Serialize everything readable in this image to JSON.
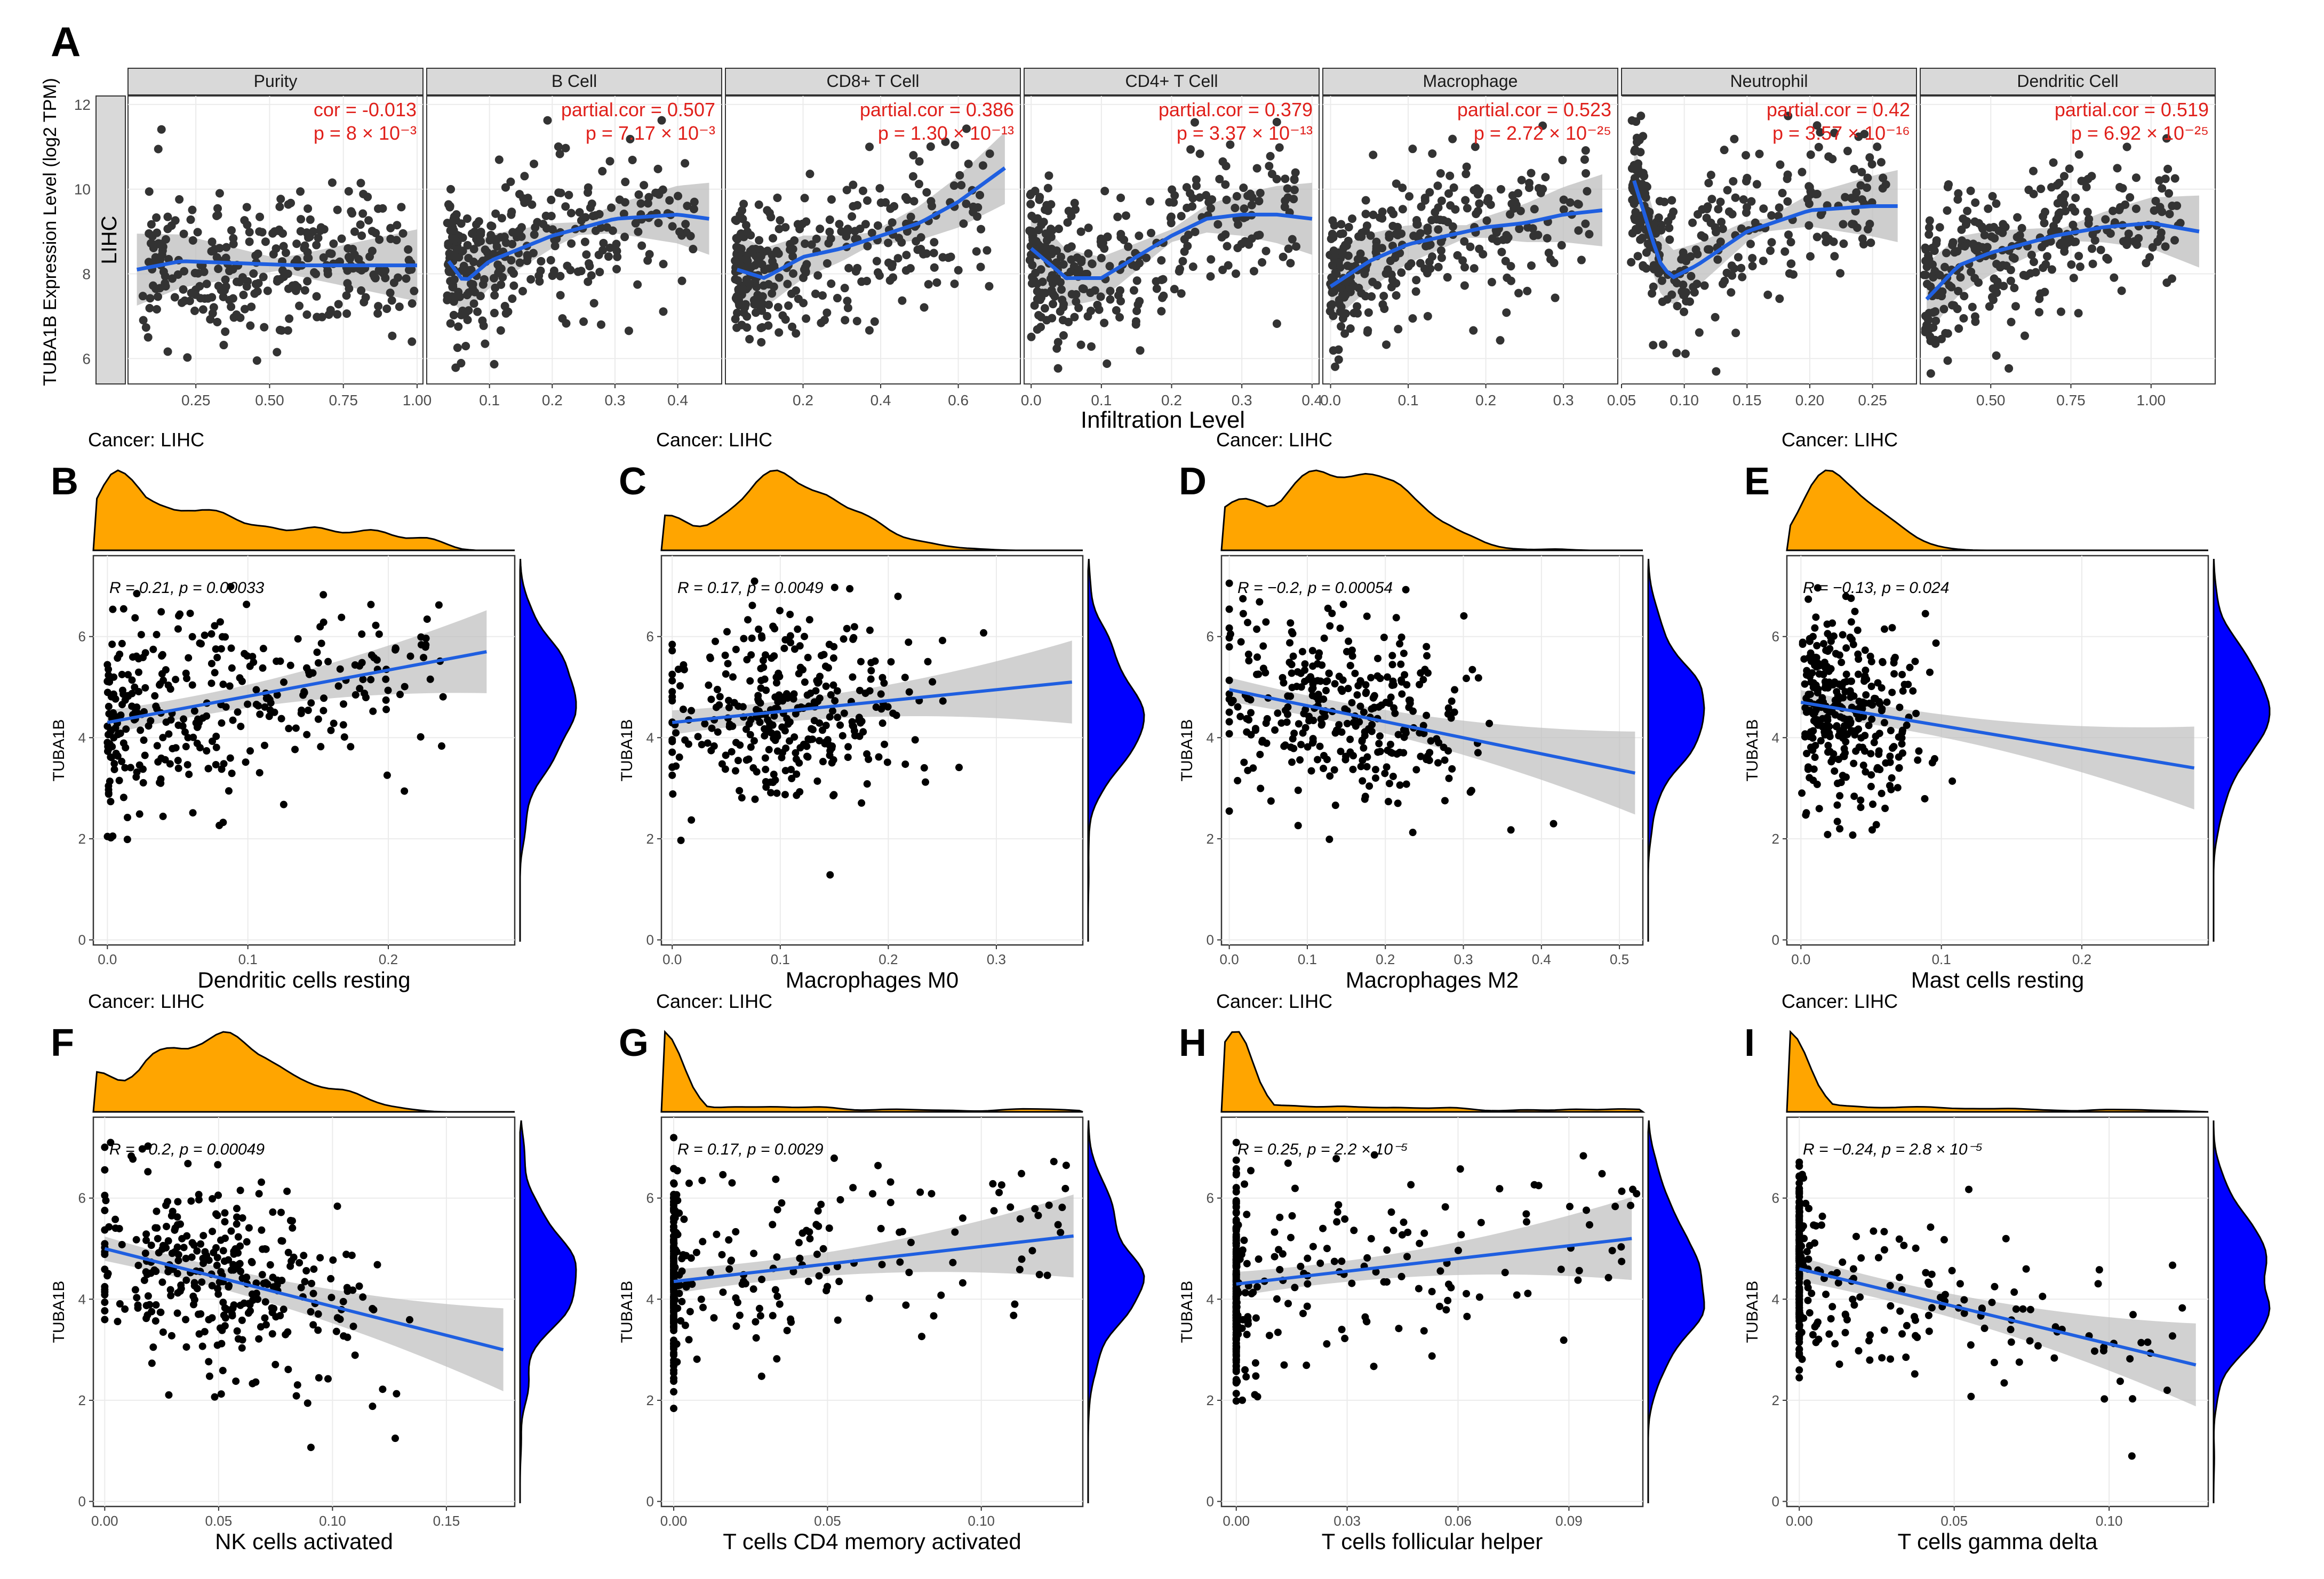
{
  "panel_a": {
    "letter": "A",
    "ylabel": "TUBA1B Expression Level (log2 TPM)",
    "xlabel": "Infiltration Level",
    "row_label": "LIHC",
    "yticks": [
      "6",
      "8",
      "10",
      "12"
    ],
    "ylim": [
      5.4,
      12.2
    ]
  },
  "panels_bottom_common": {
    "cancer_label": "Cancer: LIHC",
    "ylabel": "TUBA1B",
    "yticks": [
      "0",
      "2",
      "4",
      "6"
    ]
  },
  "colors": {
    "points": "#333333",
    "fit_line": "#1f5fe0",
    "ci_band": "#bdbdbd",
    "annot_red": "#e0201b",
    "top_density": "#ffa500",
    "right_density": "#0000ff",
    "strip_bg": "#d9d9d9"
  },
  "chart_data": [
    {
      "type": "scatter",
      "panel": "A",
      "strip": "Purity",
      "stat_label": "cor = -0.013",
      "p_label": "p = 8 × 10⁻³",
      "xticks": [
        "0.25",
        "0.50",
        "0.75",
        "1.00"
      ],
      "xlim": [
        0.02,
        1.02
      ],
      "fit": [
        [
          0.05,
          8.1
        ],
        [
          0.2,
          8.3
        ],
        [
          0.4,
          8.25
        ],
        [
          0.6,
          8.2
        ],
        [
          0.8,
          8.2
        ],
        [
          1.0,
          8.2
        ]
      ],
      "seed": 11
    },
    {
      "type": "scatter",
      "panel": "A",
      "strip": "B Cell",
      "stat_label": "partial.cor = 0.507",
      "p_label": "p = 7.17 × 10⁻³",
      "xticks": [
        "0.1",
        "0.2",
        "0.3",
        "0.4"
      ],
      "xlim": [
        0.0,
        0.47
      ],
      "fit": [
        [
          0.035,
          8.3
        ],
        [
          0.06,
          7.8
        ],
        [
          0.1,
          8.3
        ],
        [
          0.2,
          8.9
        ],
        [
          0.3,
          9.3
        ],
        [
          0.4,
          9.4
        ],
        [
          0.45,
          9.3
        ]
      ],
      "seed": 23
    },
    {
      "type": "scatter",
      "panel": "A",
      "strip": "CD8+ T Cell",
      "stat_label": "partial.cor = 0.386",
      "p_label": "p = 1.30 × 10⁻¹³",
      "xticks": [
        "0.2",
        "0.4",
        "0.6"
      ],
      "xlim": [
        0.0,
        0.76
      ],
      "fit": [
        [
          0.03,
          8.1
        ],
        [
          0.1,
          7.9
        ],
        [
          0.2,
          8.4
        ],
        [
          0.3,
          8.6
        ],
        [
          0.4,
          8.9
        ],
        [
          0.5,
          9.2
        ],
        [
          0.6,
          9.7
        ],
        [
          0.72,
          10.5
        ]
      ],
      "seed": 37
    },
    {
      "type": "scatter",
      "panel": "A",
      "strip": "CD4+ T Cell",
      "stat_label": "partial.cor = 0.379",
      "p_label": "p = 3.37 × 10⁻¹³",
      "xticks": [
        "0.0",
        "0.1",
        "0.2",
        "0.3",
        "0.4"
      ],
      "xlim": [
        -0.01,
        0.41
      ],
      "fit": [
        [
          0.0,
          8.6
        ],
        [
          0.05,
          7.9
        ],
        [
          0.1,
          7.9
        ],
        [
          0.15,
          8.4
        ],
        [
          0.2,
          8.9
        ],
        [
          0.25,
          9.3
        ],
        [
          0.3,
          9.4
        ],
        [
          0.35,
          9.4
        ],
        [
          0.4,
          9.3
        ]
      ],
      "seed": 41
    },
    {
      "type": "scatter",
      "panel": "A",
      "strip": "Macrophage",
      "stat_label": "partial.cor = 0.523",
      "p_label": "p = 2.72 × 10⁻²⁵",
      "xticks": [
        "0.0",
        "0.1",
        "0.2",
        "0.3"
      ],
      "xlim": [
        -0.01,
        0.37
      ],
      "fit": [
        [
          0.0,
          7.7
        ],
        [
          0.05,
          8.3
        ],
        [
          0.1,
          8.7
        ],
        [
          0.15,
          8.9
        ],
        [
          0.2,
          9.1
        ],
        [
          0.25,
          9.2
        ],
        [
          0.3,
          9.4
        ],
        [
          0.35,
          9.5
        ]
      ],
      "seed": 53
    },
    {
      "type": "scatter",
      "panel": "A",
      "strip": "Neutrophil",
      "stat_label": "partial.cor = 0.42",
      "p_label": "p = 3.57 × 10⁻¹⁶",
      "xticks": [
        "0.05",
        "0.10",
        "0.15",
        "0.20",
        "0.25"
      ],
      "xlim": [
        0.05,
        0.285
      ],
      "fit": [
        [
          0.06,
          10.2
        ],
        [
          0.08,
          8.3
        ],
        [
          0.09,
          7.9
        ],
        [
          0.11,
          8.2
        ],
        [
          0.15,
          9.0
        ],
        [
          0.2,
          9.5
        ],
        [
          0.25,
          9.6
        ],
        [
          0.27,
          9.6
        ]
      ],
      "seed": 67
    },
    {
      "type": "scatter",
      "panel": "A",
      "strip": "Dendritic Cell",
      "stat_label": "partial.cor = 0.519",
      "p_label": "p = 6.92 × 10⁻²⁵",
      "xticks": [
        "0.50",
        "0.75",
        "1.00"
      ],
      "xlim": [
        0.28,
        1.2
      ],
      "fit": [
        [
          0.3,
          7.4
        ],
        [
          0.4,
          8.2
        ],
        [
          0.5,
          8.5
        ],
        [
          0.7,
          8.9
        ],
        [
          0.85,
          9.1
        ],
        [
          1.0,
          9.2
        ],
        [
          1.15,
          9.0
        ]
      ],
      "seed": 71
    },
    {
      "type": "scatter",
      "panel": "B",
      "letter": "B",
      "xlabel": "Dendritic cells resting",
      "stat_label": "R = 0.21, p = 0.00033",
      "xticks": [
        "0.0",
        "0.1",
        "0.2"
      ],
      "xlim": [
        -0.01,
        0.29
      ],
      "line": [
        [
          0.0,
          4.3
        ],
        [
          0.27,
          5.7
        ]
      ],
      "seed": 101,
      "skew": "right"
    },
    {
      "type": "scatter",
      "panel": "C",
      "letter": "C",
      "xlabel": "Macrophages M0",
      "stat_label": "R = 0.17, p = 0.0049",
      "xticks": [
        "0.0",
        "0.1",
        "0.2",
        "0.3"
      ],
      "xlim": [
        -0.01,
        0.38
      ],
      "line": [
        [
          0.0,
          4.3
        ],
        [
          0.37,
          5.1
        ]
      ],
      "seed": 113,
      "skew": "mid"
    },
    {
      "type": "scatter",
      "panel": "D",
      "letter": "D",
      "xlabel": "Macrophages M2",
      "stat_label": "R = −0.2, p = 0.00054",
      "xticks": [
        "0.0",
        "0.1",
        "0.2",
        "0.3",
        "0.4",
        "0.5"
      ],
      "xlim": [
        -0.01,
        0.53
      ],
      "line": [
        [
          0.0,
          4.95
        ],
        [
          0.52,
          3.3
        ]
      ],
      "seed": 127,
      "skew": "mid"
    },
    {
      "type": "scatter",
      "panel": "E",
      "letter": "E",
      "xlabel": "Mast cells resting",
      "stat_label": "R = −0.13, p = 0.024",
      "xticks": [
        "0.0",
        "0.1",
        "0.2"
      ],
      "xlim": [
        -0.01,
        0.29
      ],
      "line": [
        [
          0.0,
          4.7
        ],
        [
          0.28,
          3.4
        ]
      ],
      "seed": 131,
      "skew": "left"
    },
    {
      "type": "scatter",
      "panel": "F",
      "letter": "F",
      "xlabel": "NK cells activated",
      "stat_label": "R = −0.2, p = 0.00049",
      "xticks": [
        "0.00",
        "0.05",
        "0.10",
        "0.15"
      ],
      "xlim": [
        -0.005,
        0.18
      ],
      "line": [
        [
          0.0,
          5.0
        ],
        [
          0.175,
          3.0
        ]
      ],
      "seed": 139,
      "skew": "mid"
    },
    {
      "type": "scatter",
      "panel": "G",
      "letter": "G",
      "xlabel": "T cells CD4 memory activated",
      "stat_label": "R = 0.17, p = 0.0029",
      "xticks": [
        "0.00",
        "0.05",
        "0.10"
      ],
      "xlim": [
        -0.004,
        0.133
      ],
      "line": [
        [
          0.0,
          4.35
        ],
        [
          0.13,
          5.25
        ]
      ],
      "seed": 149,
      "skew": "zero"
    },
    {
      "type": "scatter",
      "panel": "H",
      "letter": "H",
      "xlabel": "T cells follicular helper",
      "stat_label": "R = 0.25, p = 2.2 × 10⁻⁵",
      "xticks": [
        "0.00",
        "0.03",
        "0.06",
        "0.09"
      ],
      "xlim": [
        -0.004,
        0.11
      ],
      "line": [
        [
          0.0,
          4.3
        ],
        [
          0.107,
          5.2
        ]
      ],
      "seed": 157,
      "skew": "zero"
    },
    {
      "type": "scatter",
      "panel": "I",
      "letter": "I",
      "xlabel": "T cells gamma delta",
      "stat_label": "R = −0.24, p = 2.8 × 10⁻⁵",
      "xticks": [
        "0.00",
        "0.05",
        "0.10"
      ],
      "xlim": [
        -0.004,
        0.132
      ],
      "line": [
        [
          0.0,
          4.6
        ],
        [
          0.128,
          2.7
        ]
      ],
      "seed": 163,
      "skew": "zero"
    }
  ]
}
